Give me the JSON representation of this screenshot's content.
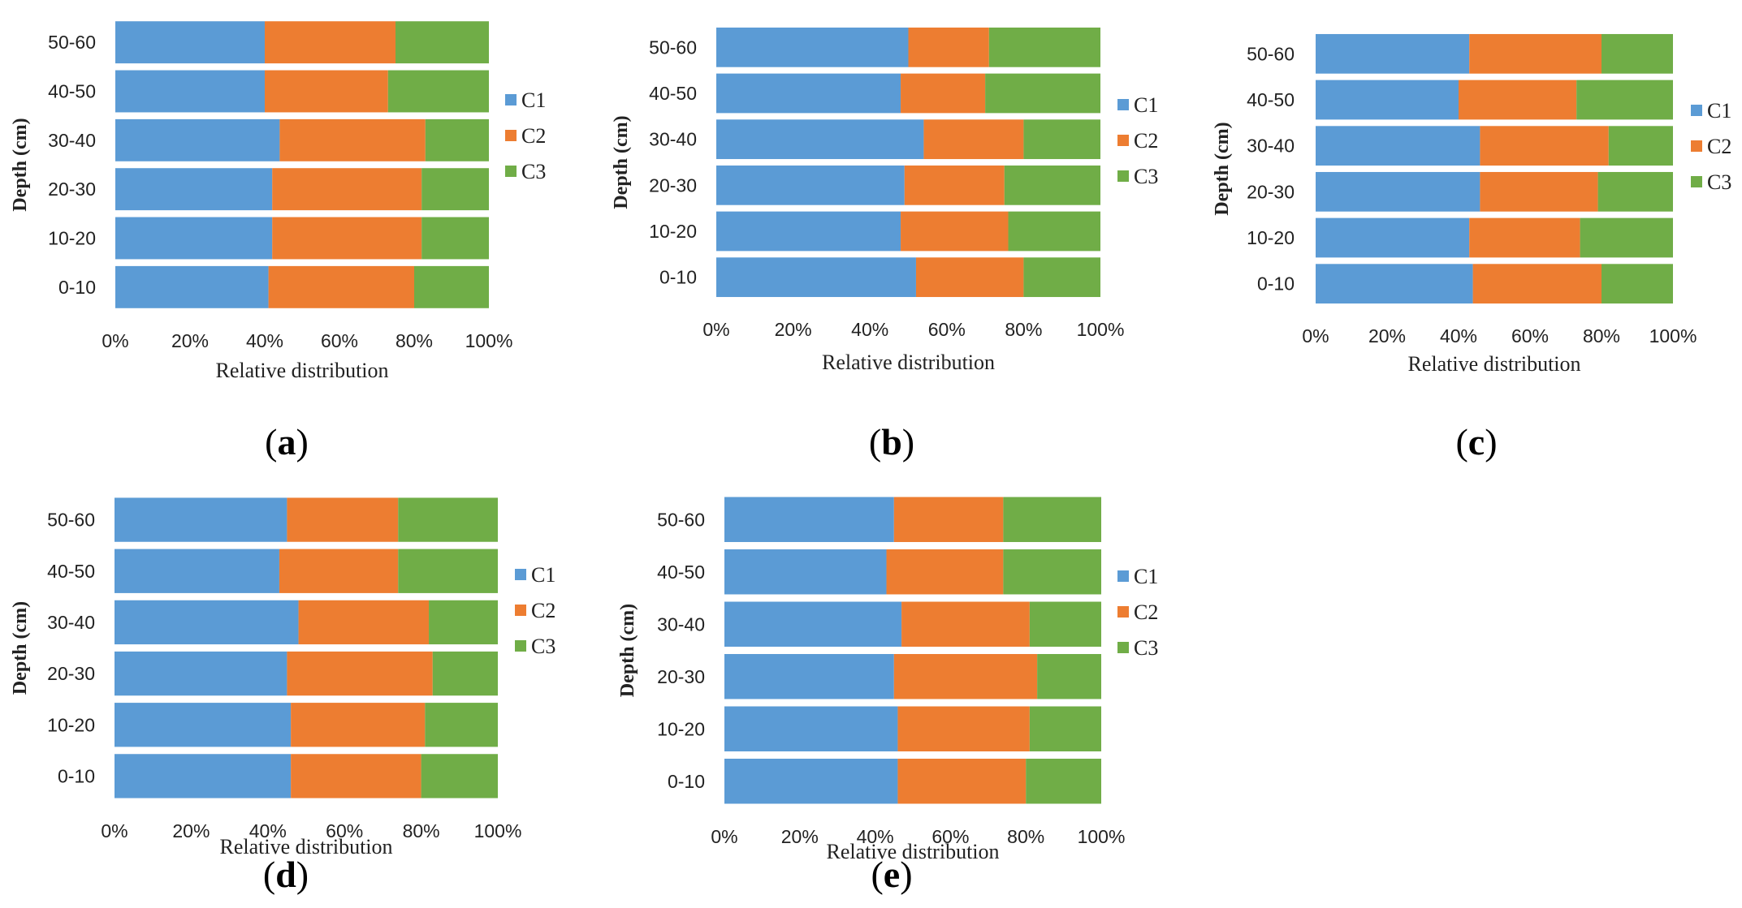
{
  "figure": {
    "colors": {
      "C1": "#5b9bd5",
      "C2": "#ed7d31",
      "C3": "#70ad47",
      "text": "#222222"
    }
  },
  "chart_data": [
    {
      "type": "bar",
      "orientation": "horizontal",
      "stacked": "percent",
      "panel_label": "a",
      "categories": [
        "0-10",
        "10-20",
        "20-30",
        "30-40",
        "40-50",
        "50-60"
      ],
      "series": [
        {
          "name": "C1",
          "values": [
            41,
            42,
            42,
            44,
            40,
            40
          ]
        },
        {
          "name": "C2",
          "values": [
            39,
            40,
            40,
            39,
            33,
            35
          ]
        },
        {
          "name": "C3",
          "values": [
            20,
            18,
            18,
            17,
            27,
            25
          ]
        }
      ],
      "xlabel": "Relative distribution",
      "ylabel": "Depth (cm)",
      "xticks": [
        "0%",
        "20%",
        "40%",
        "60%",
        "80%",
        "100%"
      ],
      "xlim": [
        0,
        100
      ],
      "legend": "right"
    },
    {
      "type": "bar",
      "orientation": "horizontal",
      "stacked": "percent",
      "panel_label": "b",
      "categories": [
        "0-10",
        "10-20",
        "20-30",
        "30-40",
        "40-50",
        "50-60"
      ],
      "series": [
        {
          "name": "C1",
          "values": [
            52,
            48,
            49,
            54,
            48,
            50
          ]
        },
        {
          "name": "C2",
          "values": [
            28,
            28,
            26,
            26,
            22,
            21
          ]
        },
        {
          "name": "C3",
          "values": [
            20,
            24,
            25,
            20,
            30,
            29
          ]
        }
      ],
      "xlabel": "Relative distribution",
      "ylabel": "Depth (cm)",
      "xticks": [
        "0%",
        "20%",
        "40%",
        "60%",
        "80%",
        "100%"
      ],
      "xlim": [
        0,
        100
      ],
      "legend": "right"
    },
    {
      "type": "bar",
      "orientation": "horizontal",
      "stacked": "percent",
      "panel_label": "c",
      "categories": [
        "0-10",
        "10-20",
        "20-30",
        "30-40",
        "40-50",
        "50-60"
      ],
      "series": [
        {
          "name": "C1",
          "values": [
            44,
            43,
            46,
            46,
            40,
            43
          ]
        },
        {
          "name": "C2",
          "values": [
            36,
            31,
            33,
            36,
            33,
            37
          ]
        },
        {
          "name": "C3",
          "values": [
            20,
            26,
            21,
            18,
            27,
            20
          ]
        }
      ],
      "xlabel": "Relative distribution",
      "ylabel": "Depth (cm)",
      "xticks": [
        "0%",
        "20%",
        "40%",
        "60%",
        "80%",
        "100%"
      ],
      "xlim": [
        0,
        100
      ],
      "legend": "right"
    },
    {
      "type": "bar",
      "orientation": "horizontal",
      "stacked": "percent",
      "panel_label": "d",
      "categories": [
        "0-10",
        "10-20",
        "20-30",
        "30-40",
        "40-50",
        "50-60"
      ],
      "series": [
        {
          "name": "C1",
          "values": [
            46,
            46,
            45,
            48,
            43,
            45
          ]
        },
        {
          "name": "C2",
          "values": [
            34,
            35,
            38,
            34,
            31,
            29
          ]
        },
        {
          "name": "C3",
          "values": [
            20,
            19,
            17,
            18,
            26,
            26
          ]
        }
      ],
      "xlabel": "Relative distribution",
      "ylabel": "Depth (cm)",
      "xticks": [
        "0%",
        "20%",
        "40%",
        "60%",
        "80%",
        "100%"
      ],
      "xlim": [
        0,
        100
      ],
      "legend": "right"
    },
    {
      "type": "bar",
      "orientation": "horizontal",
      "stacked": "percent",
      "panel_label": "e",
      "categories": [
        "0-10",
        "10-20",
        "20-30",
        "30-40",
        "40-50",
        "50-60"
      ],
      "series": [
        {
          "name": "C1",
          "values": [
            46,
            46,
            45,
            47,
            43,
            45
          ]
        },
        {
          "name": "C2",
          "values": [
            34,
            35,
            38,
            34,
            31,
            29
          ]
        },
        {
          "name": "C3",
          "values": [
            20,
            19,
            17,
            19,
            26,
            26
          ]
        }
      ],
      "xlabel": "Relative distribution",
      "ylabel": "Depth (cm)",
      "xticks": [
        "0%",
        "20%",
        "40%",
        "60%",
        "80%",
        "100%"
      ],
      "xlim": [
        0,
        100
      ],
      "legend": "right"
    }
  ]
}
